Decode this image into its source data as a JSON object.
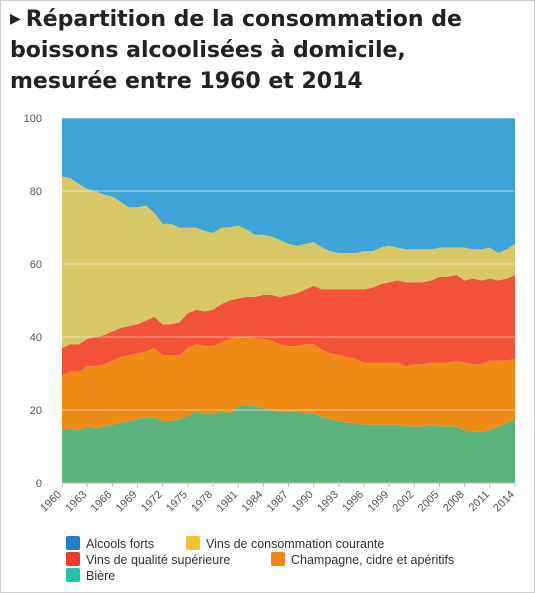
{
  "title": "Répartition de la consommation de boissons alcoolisées à domicile, mesurée entre 1960 et 2014",
  "colors": {
    "alcools_forts": "#3ea3d6",
    "vins_courante": "#d8c766",
    "vins_superieure": "#f25237",
    "champagne": "#ef8a14",
    "biere": "#5cb27d",
    "grid": "#e6e6e6",
    "axis_text": "#555555"
  },
  "legend": {
    "items": [
      {
        "label": "Alcools forts",
        "swatch_color": "#1f7fc9"
      },
      {
        "label": "Vins de consommation courante",
        "swatch_color": "#f2c12e"
      },
      {
        "label": "Vins de qualité supérieure",
        "swatch_color": "#ee3b2c"
      },
      {
        "label": "Champagne, cidre et apéritifs",
        "swatch_color": "#f08313"
      },
      {
        "label": "Bière",
        "swatch_color": "#21c4a6"
      }
    ]
  },
  "chart_data": {
    "type": "area",
    "stacked": true,
    "title": "Répartition de la consommation de boissons alcoolisées à domicile, mesurée entre 1960 et 2014",
    "xlabel": "",
    "ylabel": "",
    "ylim": [
      0,
      100
    ],
    "y_ticks": [
      0,
      20,
      40,
      60,
      80,
      100
    ],
    "x_ticks": [
      1960,
      1963,
      1966,
      1969,
      1972,
      1975,
      1978,
      1981,
      1984,
      1987,
      1990,
      1993,
      1996,
      1999,
      2002,
      2005,
      2008,
      2011,
      2014
    ],
    "grid": true,
    "legend_position": "bottom",
    "x": [
      1960,
      1961,
      1962,
      1963,
      1964,
      1965,
      1966,
      1967,
      1968,
      1969,
      1970,
      1971,
      1972,
      1973,
      1974,
      1975,
      1976,
      1977,
      1978,
      1979,
      1980,
      1981,
      1982,
      1983,
      1984,
      1985,
      1986,
      1987,
      1988,
      1989,
      1990,
      1991,
      1992,
      1993,
      1994,
      1995,
      1996,
      1997,
      1998,
      1999,
      2000,
      2001,
      2002,
      2003,
      2004,
      2005,
      2006,
      2007,
      2008,
      2009,
      2010,
      2011,
      2012,
      2013,
      2014
    ],
    "series": [
      {
        "name": "Bière",
        "values": [
          14.5,
          15,
          14.5,
          15.5,
          15,
          15.5,
          16,
          16.5,
          17,
          17.5,
          18,
          18,
          17,
          17,
          17.5,
          18.5,
          19.5,
          19,
          19,
          19.5,
          19,
          21,
          21.5,
          21,
          20.5,
          20,
          19.5,
          19.5,
          19.5,
          19,
          19,
          18,
          17.5,
          17,
          16.5,
          16.5,
          16,
          16,
          16,
          16,
          16,
          15.5,
          15.5,
          15.5,
          16,
          15.5,
          15.5,
          15.5,
          14.5,
          14,
          14,
          14.5,
          15.5,
          16.5,
          17.5
        ]
      },
      {
        "name": "Champagne, cidre et apéritifs",
        "values": [
          15,
          15.5,
          16,
          16.5,
          17,
          17,
          17.5,
          18,
          18,
          18,
          18,
          19,
          18,
          18,
          17.5,
          18.5,
          18.5,
          18.5,
          18.5,
          19,
          20.5,
          19,
          18.5,
          18.5,
          19,
          19,
          18.5,
          18,
          18,
          19,
          19,
          18.5,
          18,
          18,
          18,
          17.5,
          17,
          17,
          17,
          17,
          17,
          16.5,
          17,
          17,
          17,
          17.5,
          17.5,
          18,
          18.5,
          18.5,
          18.5,
          19,
          18,
          17,
          16.5
        ]
      },
      {
        "name": "Vins de qualité supérieure",
        "values": [
          7.5,
          7.5,
          7.5,
          7.5,
          8,
          8,
          8,
          8,
          8,
          8,
          8.5,
          8.5,
          8.5,
          8.5,
          9,
          9.5,
          9.5,
          9.5,
          10,
          10.5,
          10.5,
          10.5,
          11,
          11.5,
          12,
          12.5,
          13,
          14,
          14.5,
          15,
          16,
          16.5,
          17.5,
          18,
          18.5,
          19,
          20,
          20.5,
          21.5,
          22,
          22.5,
          23,
          22.5,
          22.5,
          22.5,
          23.5,
          23.5,
          23.5,
          22.5,
          23.5,
          23,
          22.5,
          22,
          22.5,
          23
        ]
      },
      {
        "name": "Vins de consommation courante",
        "values": [
          47,
          45.5,
          44,
          41,
          40,
          38.5,
          37,
          34.5,
          32.5,
          32,
          31.5,
          28.5,
          27.5,
          27.5,
          26,
          23.5,
          22.5,
          22,
          21,
          21,
          20,
          20,
          18.5,
          17,
          16.5,
          16,
          15.5,
          14,
          13,
          12.5,
          12,
          11.5,
          10.5,
          10,
          10,
          10,
          10.5,
          10,
          10,
          10,
          9,
          9,
          9,
          9,
          8.5,
          8,
          8,
          7.5,
          9,
          8,
          8.5,
          8.5,
          7.5,
          8,
          8.5
        ]
      },
      {
        "name": "Alcools forts",
        "values": [
          16,
          16.5,
          18,
          19.5,
          20,
          21,
          21.5,
          23,
          24.5,
          24.5,
          24,
          26,
          29,
          29,
          30,
          30,
          30,
          31,
          31.5,
          30,
          30,
          29.5,
          30.5,
          32,
          32,
          32.5,
          33.5,
          34.5,
          35,
          34.5,
          34,
          35.5,
          36.5,
          37,
          37,
          37,
          36.5,
          36.5,
          35.5,
          35,
          35.5,
          36,
          36,
          36,
          36,
          35.5,
          35.5,
          35.5,
          35.5,
          36,
          36,
          35.5,
          37,
          36,
          34.5
        ]
      }
    ]
  }
}
